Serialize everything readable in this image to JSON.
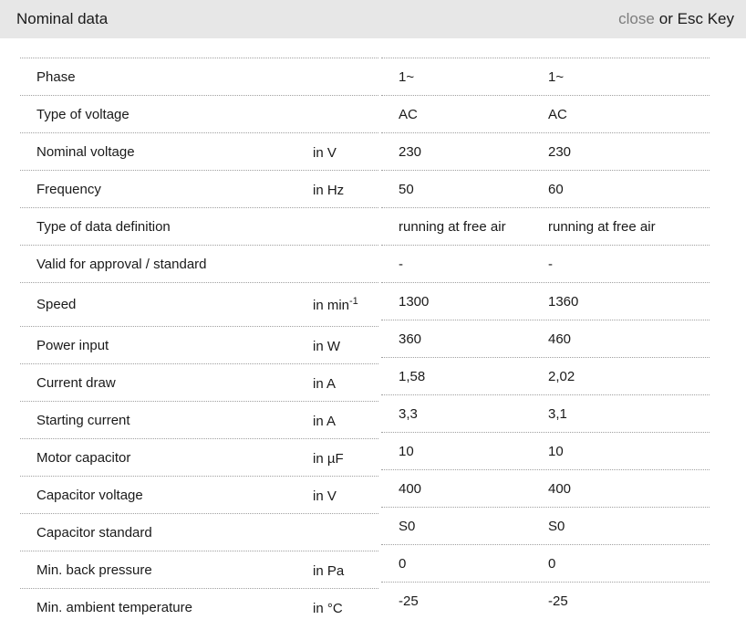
{
  "header": {
    "title": "Nominal data",
    "close_label": "close",
    "esc_label": "or Esc Key"
  },
  "colors": {
    "header_bg": "#e7e7e7",
    "text": "#1a1a1a",
    "close_link": "#7d7d7d",
    "separator": "#a0a0a0"
  },
  "rows": [
    {
      "label": "Phase",
      "unit": "",
      "v1": "1~",
      "v2": "1~"
    },
    {
      "label": "Type of voltage",
      "unit": "",
      "v1": "AC",
      "v2": "AC"
    },
    {
      "label": "Nominal voltage",
      "unit": "in V",
      "v1": "230",
      "v2": "230"
    },
    {
      "label": "Frequency",
      "unit": "in Hz",
      "v1": "50",
      "v2": "60"
    },
    {
      "label": "Type of data definition",
      "unit": "",
      "v1": "running at free air",
      "v2": "running at free air"
    },
    {
      "label": "Valid for approval / standard",
      "unit": "",
      "v1": "-",
      "v2": "-"
    },
    {
      "label": "Speed",
      "unit": "in min",
      "unit_sup": "-1",
      "tall": true,
      "v1": "1300",
      "v2": "1360"
    },
    {
      "label": "Power input",
      "unit": "in W",
      "v1": "360",
      "v2": "460"
    },
    {
      "label": "Current draw",
      "unit": "in A",
      "v1": "1,58",
      "v2": "2,02"
    },
    {
      "label": "Starting current",
      "unit": "in A",
      "v1": "3,3",
      "v2": "3,1"
    },
    {
      "label": "Motor capacitor",
      "unit": "in µF",
      "v1": "10",
      "v2": "10"
    },
    {
      "label": "Capacitor voltage",
      "unit": "in V",
      "v1": "400",
      "v2": "400"
    },
    {
      "label": "Capacitor standard",
      "unit": "",
      "v1": "S0",
      "v2": "S0"
    },
    {
      "label": "Min. back pressure",
      "unit": "in Pa",
      "v1": "0",
      "v2": "0"
    },
    {
      "label": "Min. ambient temperature",
      "unit": "in °C",
      "v1": "-25",
      "v2": "-25"
    }
  ]
}
